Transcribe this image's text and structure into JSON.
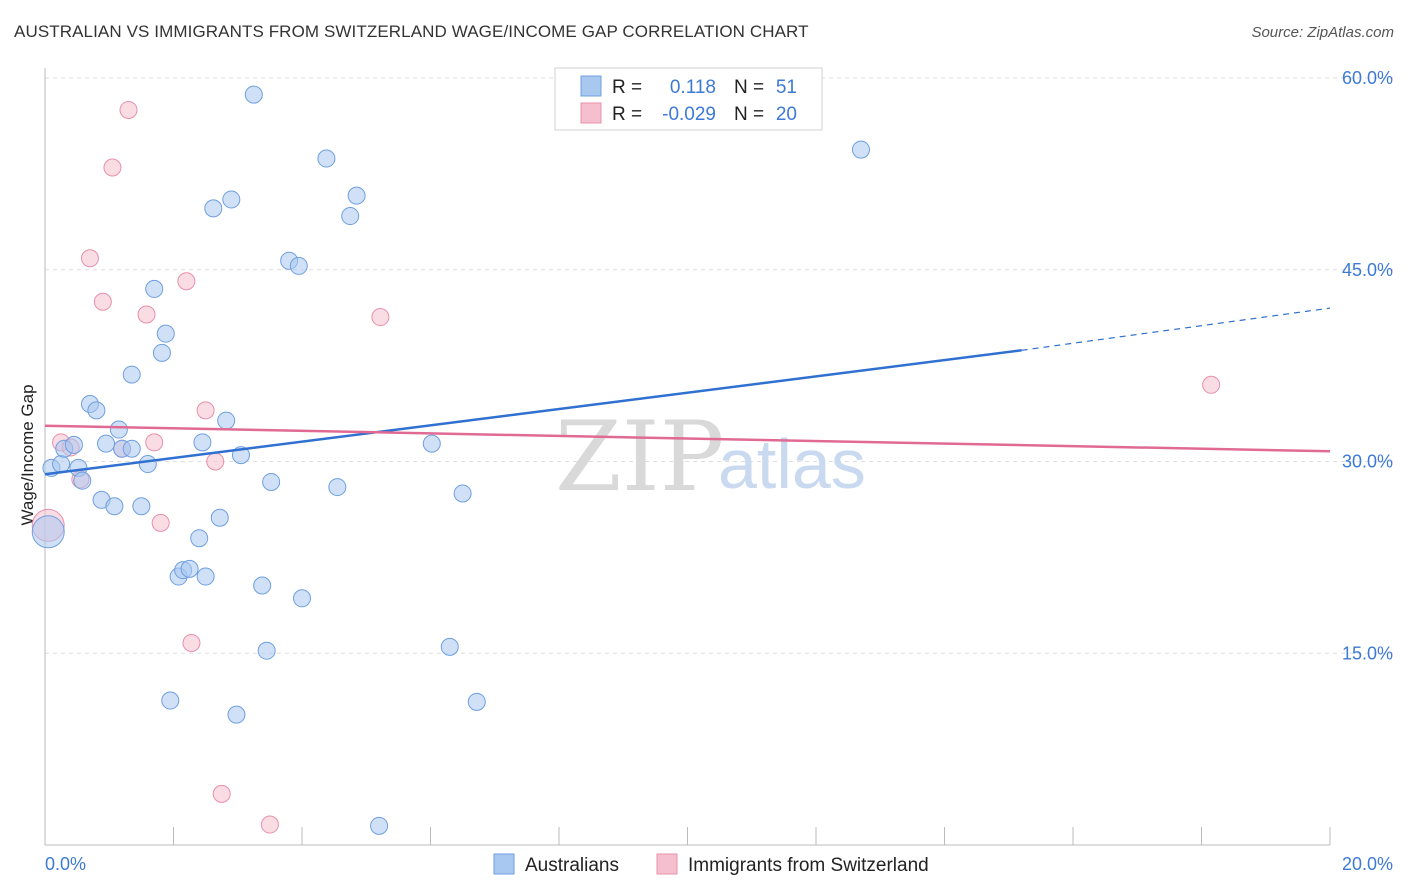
{
  "title": "AUSTRALIAN VS IMMIGRANTS FROM SWITZERLAND WAGE/INCOME GAP CORRELATION CHART",
  "source": "Source: ZipAtlas.com",
  "watermark": {
    "zip": "ZIP",
    "atlas": "atlas"
  },
  "legend": {
    "rows": [
      {
        "r_label": "R =",
        "r_value": "0.118",
        "n_label": "N =",
        "n_value": "51"
      },
      {
        "r_label": "R =",
        "r_value": "-0.029",
        "n_label": "N =",
        "n_value": "20"
      }
    ]
  },
  "bottom_legend": {
    "series1": "Australians",
    "series2": "Immigrants from Switzerland"
  },
  "colors": {
    "blue_fill": "#a9c8f0",
    "blue_stroke": "#6f9fe0",
    "blue_line": "#2f70d0",
    "pink_fill": "#f6bfd0",
    "pink_stroke": "#e890ab",
    "pink_line": "#e06a93",
    "grid": "#dddddd",
    "tick_text": "#3d7ad6"
  },
  "chart_data": {
    "type": "scatter",
    "xlabel": "",
    "ylabel": "Wage/Income Gap",
    "xlim": [
      0,
      20
    ],
    "ylim": [
      0,
      60
    ],
    "x_tick_labels": [
      "0.0%",
      "20.0%"
    ],
    "y_tick_labels": [
      "15.0%",
      "30.0%",
      "45.0%",
      "60.0%"
    ],
    "y_tick_values": [
      15,
      30,
      45,
      60
    ],
    "series": [
      {
        "name": "Australians",
        "r": 0.118,
        "n": 51,
        "trend": {
          "x0": 0,
          "y0": 29.0,
          "x1": 15.2,
          "y1": 38.7,
          "dash_x1": 20,
          "dash_y1": 42.0
        },
        "points": [
          [
            0.05,
            24.5
          ],
          [
            0.1,
            29.5
          ],
          [
            0.25,
            29.8
          ],
          [
            0.3,
            31.0
          ],
          [
            0.45,
            31.3
          ],
          [
            0.52,
            29.5
          ],
          [
            0.58,
            28.5
          ],
          [
            0.7,
            34.5
          ],
          [
            0.8,
            34.0
          ],
          [
            0.88,
            27.0
          ],
          [
            0.95,
            31.4
          ],
          [
            1.08,
            26.5
          ],
          [
            1.15,
            32.5
          ],
          [
            1.2,
            31.0
          ],
          [
            1.35,
            31.0
          ],
          [
            1.35,
            36.8
          ],
          [
            1.5,
            26.5
          ],
          [
            1.6,
            29.8
          ],
          [
            1.7,
            43.5
          ],
          [
            1.82,
            38.5
          ],
          [
            1.88,
            40.0
          ],
          [
            1.95,
            11.3
          ],
          [
            2.08,
            21.0
          ],
          [
            2.15,
            21.5
          ],
          [
            2.25,
            21.6
          ],
          [
            2.4,
            24.0
          ],
          [
            2.45,
            31.5
          ],
          [
            2.5,
            21.0
          ],
          [
            2.62,
            49.8
          ],
          [
            2.72,
            25.6
          ],
          [
            2.82,
            33.2
          ],
          [
            2.9,
            50.5
          ],
          [
            2.98,
            10.2
          ],
          [
            3.05,
            30.5
          ],
          [
            3.25,
            58.7
          ],
          [
            3.38,
            20.3
          ],
          [
            3.45,
            15.2
          ],
          [
            3.52,
            28.4
          ],
          [
            3.8,
            45.7
          ],
          [
            3.95,
            45.3
          ],
          [
            4.0,
            19.3
          ],
          [
            4.38,
            53.7
          ],
          [
            4.55,
            28.0
          ],
          [
            4.75,
            49.2
          ],
          [
            4.85,
            50.8
          ],
          [
            5.2,
            1.5
          ],
          [
            6.02,
            31.4
          ],
          [
            6.3,
            15.5
          ],
          [
            6.5,
            27.5
          ],
          [
            6.72,
            11.2
          ],
          [
            12.7,
            54.4
          ]
        ]
      },
      {
        "name": "Immigrants from Switzerland",
        "r": -0.029,
        "n": 20,
        "trend": {
          "x0": 0,
          "y0": 32.8,
          "x1": 20,
          "y1": 30.8
        },
        "points": [
          [
            0.05,
            25.0
          ],
          [
            0.25,
            31.5
          ],
          [
            0.4,
            31.1
          ],
          [
            0.55,
            28.6
          ],
          [
            0.7,
            45.9
          ],
          [
            0.9,
            42.5
          ],
          [
            1.05,
            53.0
          ],
          [
            1.2,
            31.0
          ],
          [
            1.3,
            57.5
          ],
          [
            1.58,
            41.5
          ],
          [
            1.7,
            31.5
          ],
          [
            1.8,
            25.2
          ],
          [
            2.2,
            44.1
          ],
          [
            2.28,
            15.8
          ],
          [
            2.5,
            34.0
          ],
          [
            2.65,
            30.0
          ],
          [
            2.75,
            4.0
          ],
          [
            3.5,
            1.6
          ],
          [
            5.22,
            41.3
          ],
          [
            18.15,
            36.0
          ]
        ]
      }
    ]
  }
}
